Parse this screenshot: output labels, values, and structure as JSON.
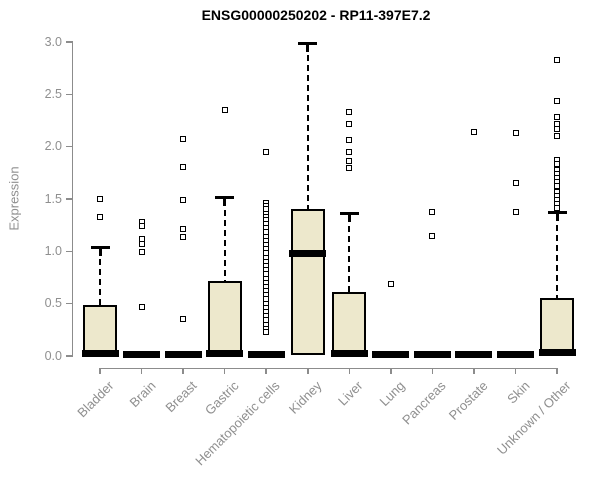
{
  "chart_data": {
    "type": "boxplot",
    "title": "ENSG00000250202 - RP11-397E7.2",
    "ylabel": "Expression",
    "xlabel": "",
    "ylim": [
      0,
      3
    ],
    "yticks": [
      0.0,
      0.5,
      1.0,
      1.5,
      2.0,
      2.5,
      3.0
    ],
    "grid": false,
    "legend": "none",
    "marker_style": "open-square",
    "categories": [
      "Bladder",
      "Brain",
      "Breast",
      "Gastric",
      "Hematopoietic cells",
      "Kidney",
      "Liver",
      "Lung",
      "Pancreas",
      "Prostate",
      "Skin",
      "Unknown / Other"
    ],
    "series": [
      {
        "label": "Bladder",
        "q1": 0,
        "median": 0.02,
        "q3": 0.49,
        "whisker_low": 0,
        "whisker_high": 1.04,
        "outliers": [
          1.5,
          1.33
        ]
      },
      {
        "label": "Brain",
        "q1": 0,
        "median": 0.01,
        "q3": 0.01,
        "whisker_low": 0,
        "whisker_high": 0.01,
        "outliers": [
          1.28,
          1.24,
          1.12,
          1.07,
          0.99,
          0.47
        ]
      },
      {
        "label": "Breast",
        "q1": 0,
        "median": 0.01,
        "q3": 0.01,
        "whisker_low": 0,
        "whisker_high": 0.01,
        "outliers": [
          2.07,
          1.81,
          1.49,
          1.21,
          1.14,
          0.35
        ]
      },
      {
        "label": "Gastric",
        "q1": 0,
        "median": 0.02,
        "q3": 0.72,
        "whisker_low": 0,
        "whisker_high": 1.51,
        "outliers": [
          2.35
        ]
      },
      {
        "label": "Hematopoietic cells",
        "q1": 0,
        "median": 0.01,
        "q3": 0.01,
        "whisker_low": 0,
        "whisker_high": 0.01,
        "outliers": [
          1.95,
          1.46,
          1.43,
          1.4,
          1.36,
          1.33,
          1.3,
          1.26,
          1.22,
          1.18,
          1.14,
          1.1,
          1.06,
          1.02,
          0.98,
          0.94,
          0.9,
          0.86,
          0.82,
          0.78,
          0.74,
          0.7,
          0.66,
          0.62,
          0.58,
          0.54,
          0.5,
          0.46,
          0.42,
          0.38,
          0.34,
          0.3,
          0.26,
          0.23
        ]
      },
      {
        "label": "Kidney",
        "q1": 0.01,
        "median": 0.98,
        "q3": 1.4,
        "whisker_low": 0,
        "whisker_high": 2.99,
        "outliers": []
      },
      {
        "label": "Liver",
        "q1": 0,
        "median": 0.02,
        "q3": 0.61,
        "whisker_low": 0,
        "whisker_high": 1.36,
        "outliers": [
          2.33,
          2.22,
          2.06,
          1.95,
          1.86,
          1.8
        ]
      },
      {
        "label": "Lung",
        "q1": 0,
        "median": 0.01,
        "q3": 0.01,
        "whisker_low": 0,
        "whisker_high": 0.01,
        "outliers": [
          0.69
        ]
      },
      {
        "label": "Pancreas",
        "q1": 0,
        "median": 0.01,
        "q3": 0.01,
        "whisker_low": 0,
        "whisker_high": 0.01,
        "outliers": [
          1.38,
          1.15
        ]
      },
      {
        "label": "Prostate",
        "q1": 0,
        "median": 0.01,
        "q3": 0.01,
        "whisker_low": 0,
        "whisker_high": 0.01,
        "outliers": [
          2.14
        ]
      },
      {
        "label": "Skin",
        "q1": 0,
        "median": 0.01,
        "q3": 0.01,
        "whisker_low": 0,
        "whisker_high": 0.01,
        "outliers": [
          2.13,
          1.65,
          1.38
        ]
      },
      {
        "label": "Unknown / Other",
        "q1": 0,
        "median": 0.03,
        "q3": 0.55,
        "whisker_low": 0,
        "whisker_high": 1.37,
        "outliers": [
          2.83,
          2.44,
          2.28,
          2.22,
          2.17,
          2.1,
          1.87,
          1.83,
          1.78,
          1.74,
          1.7,
          1.66,
          1.62,
          1.57,
          1.53,
          1.49,
          1.45,
          1.41
        ]
      }
    ]
  },
  "colors": {
    "background": "#ffffff",
    "box_fill": "#ede8cc",
    "box_stroke": "#000000",
    "median": "#000000",
    "whisker": "#000000",
    "outlier_stroke": "#000000",
    "outlier_fill": "#ffffff",
    "axis_line": "#8c8c8c",
    "axis_text": "#8f8f8f",
    "title_text": "#000000"
  }
}
